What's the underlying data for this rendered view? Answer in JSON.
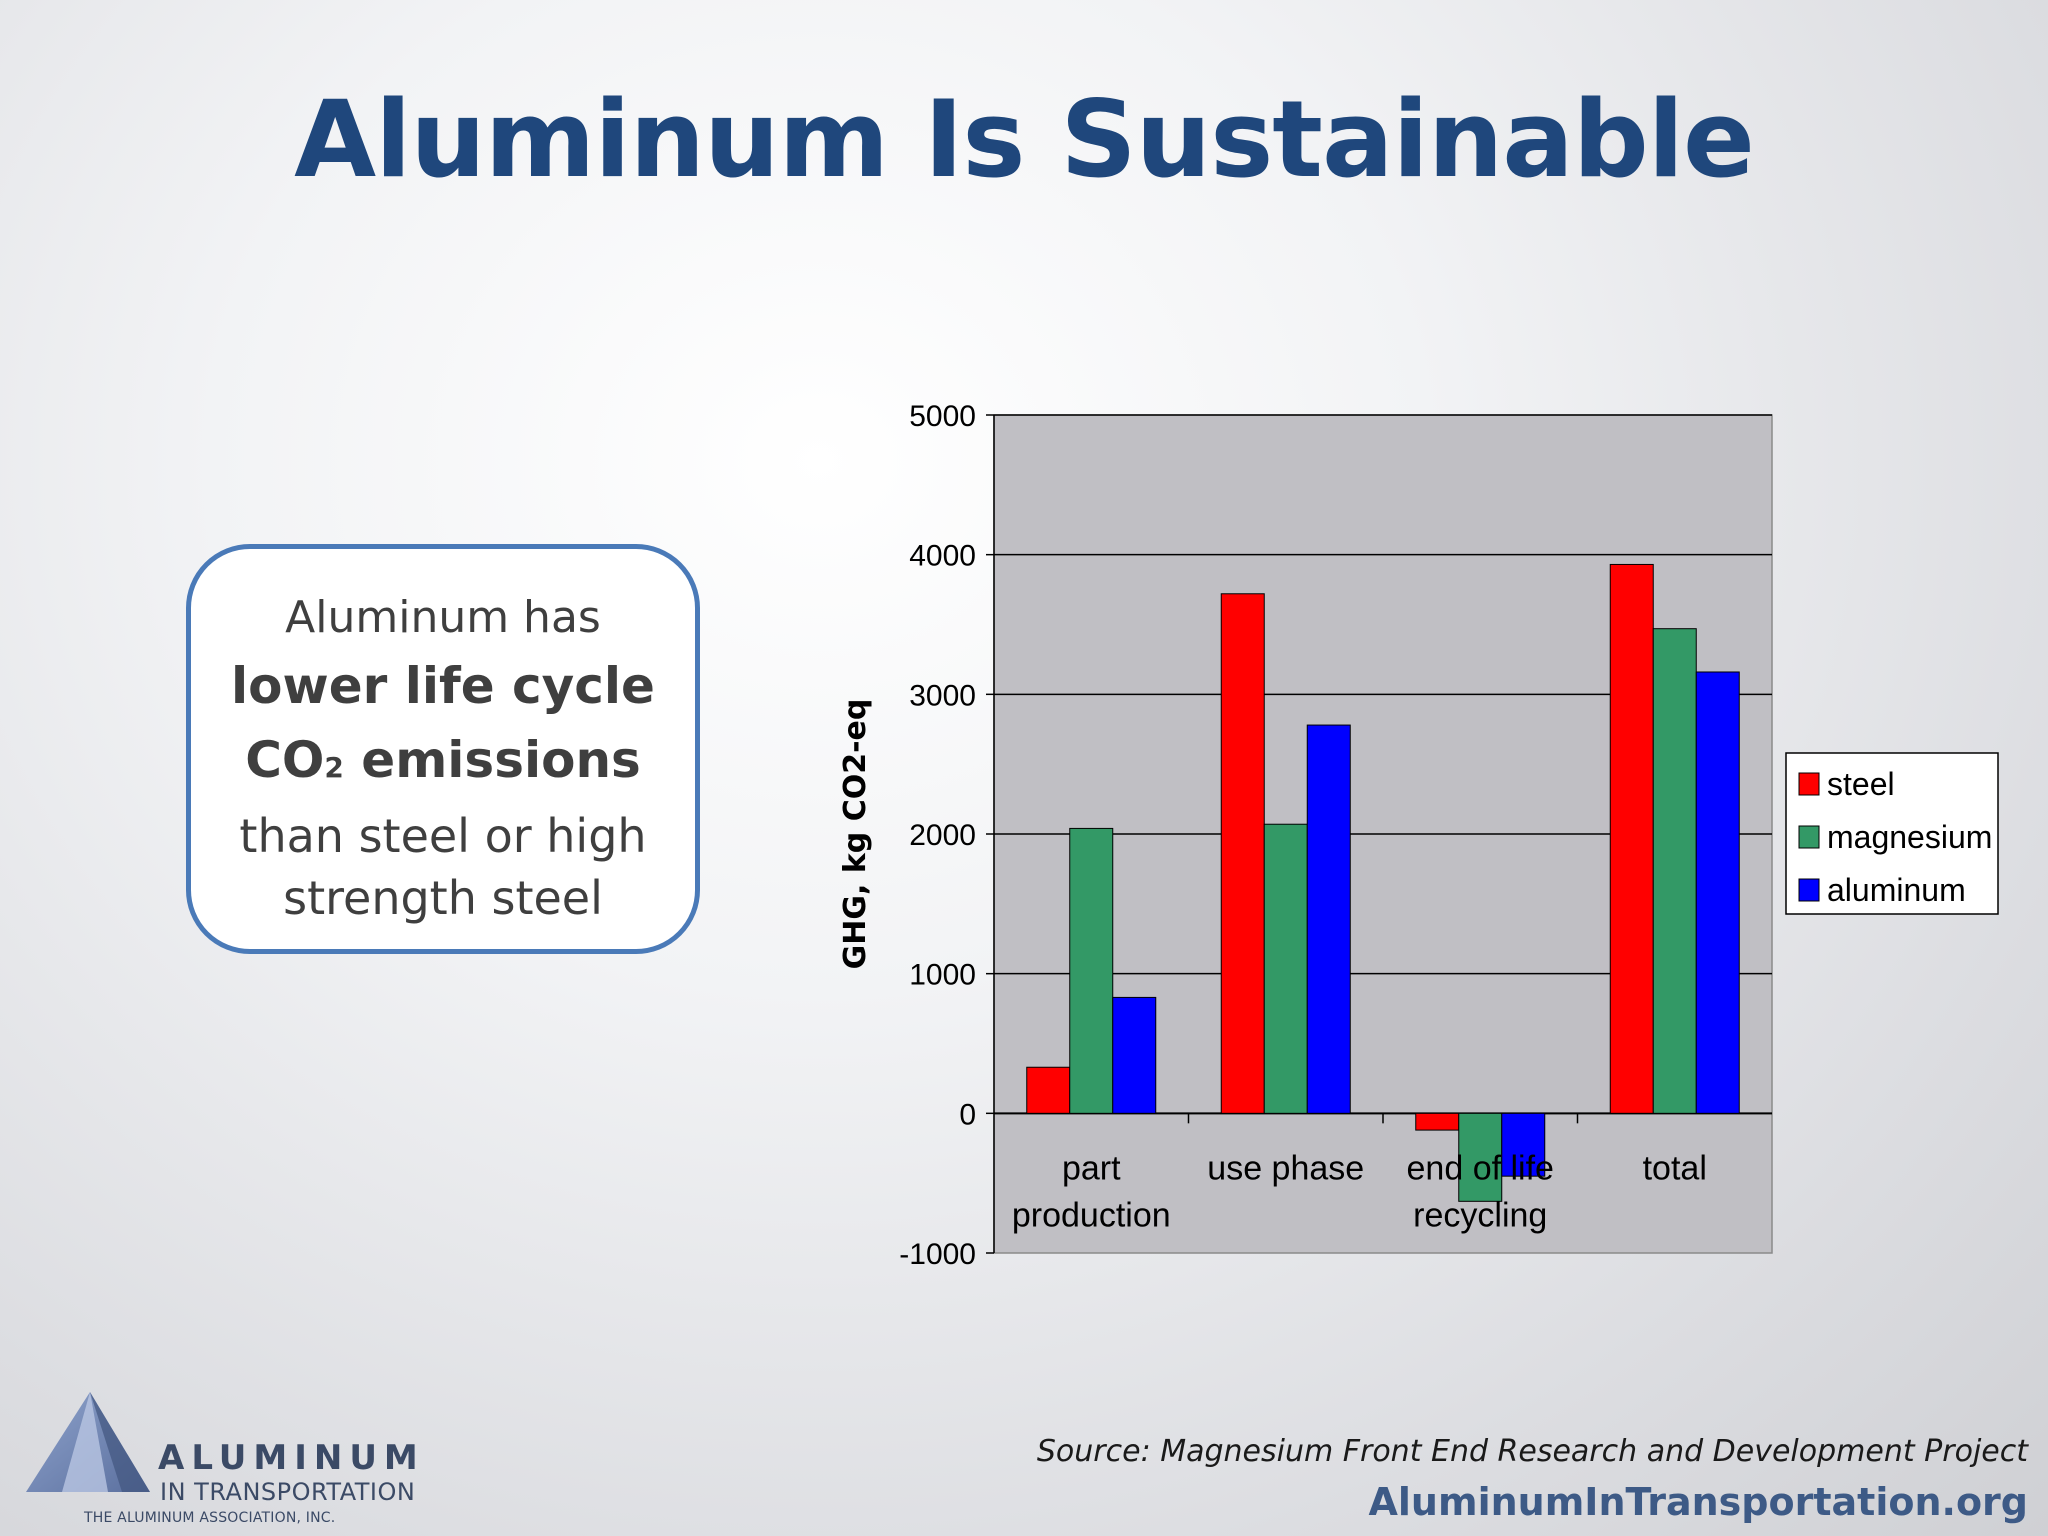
{
  "slide": {
    "title": "Aluminum Is Sustainable",
    "callout": {
      "line1": "Aluminum has",
      "line2": "lower life cycle",
      "line3_main": "CO",
      "line3_sub": "2",
      "line3_rest": " emissions",
      "line4": "than steel or high",
      "line5": "strength steel"
    },
    "source": "Source: Magnesium Front End Research and Development Project",
    "website": "AluminumInTransportation.org",
    "logo": {
      "word1": "ALUMINUM",
      "word2": "IN TRANSPORTATION",
      "word3": "THE ALUMINUM ASSOCIATION, INC."
    }
  },
  "chart_data": {
    "type": "bar",
    "ylabel": "GHG, kg CO2-eq",
    "ylim": [
      -1000,
      5000
    ],
    "yticks": [
      "-1000",
      "0",
      "1000",
      "2000",
      "3000",
      "4000",
      "5000"
    ],
    "ytick_values": [
      -1000,
      0,
      1000,
      2000,
      3000,
      4000,
      5000
    ],
    "categories": [
      [
        "part",
        "production"
      ],
      [
        "use phase"
      ],
      [
        "end of life",
        "recycling"
      ],
      [
        "total"
      ]
    ],
    "series": [
      {
        "name": "steel",
        "color": "#ff0000",
        "values": [
          330,
          3720,
          -120,
          3930
        ]
      },
      {
        "name": "magnesium",
        "color": "#339966",
        "values": [
          2040,
          2070,
          -630,
          3470
        ]
      },
      {
        "name": "aluminum",
        "color": "#0000ff",
        "values": [
          830,
          2780,
          -450,
          3160
        ]
      }
    ],
    "grid": true,
    "legend": "right",
    "plot_background": "#c0bfc4"
  }
}
